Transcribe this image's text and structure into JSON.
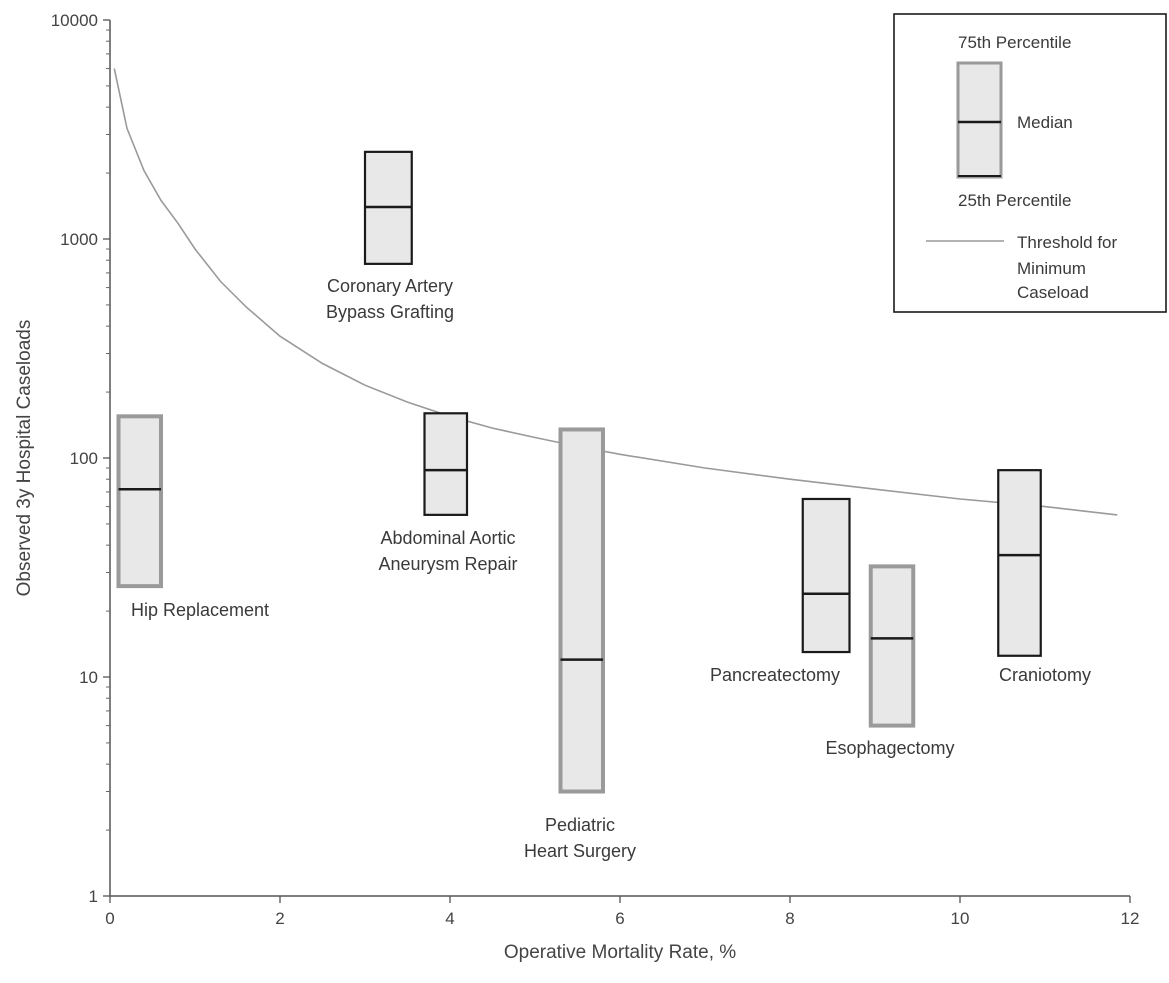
{
  "chart_data": {
    "type": "box",
    "title": "",
    "xlabel": "Operative Mortality Rate, %",
    "ylabel": "Observed 3y Hospital Caseloads",
    "xlim": [
      0,
      12
    ],
    "ylim": [
      1,
      10000
    ],
    "yscale": "log",
    "x_ticks": [
      "0",
      "2",
      "4",
      "6",
      "8",
      "10",
      "12"
    ],
    "y_ticks": [
      "1",
      "10",
      "100",
      "1000",
      "10000"
    ],
    "grid": false,
    "legend_position": "top-right",
    "colors": {
      "box_fill": "#e8e8e8",
      "box_edge_dark": "#1a1a1a",
      "box_edge_gray": "#9a9a9a",
      "threshold": "#9a9a9a"
    },
    "boxes": [
      {
        "name": "Hip Replacement",
        "label_lines": [
          "Hip Replacement"
        ],
        "x_low": 0.1,
        "x_high": 0.6,
        "q1": 26,
        "median": 72,
        "q3": 155,
        "edge": "gray"
      },
      {
        "name": "Coronary Artery Bypass Grafting",
        "label_lines": [
          "Coronary Artery",
          "Bypass Grafting"
        ],
        "x_low": 3.0,
        "x_high": 3.55,
        "q1": 770,
        "median": 1400,
        "q3": 2500,
        "edge": "dark"
      },
      {
        "name": "Abdominal Aortic Aneurysm Repair",
        "label_lines": [
          "Abdominal Aortic",
          "Aneurysm Repair"
        ],
        "x_low": 3.7,
        "x_high": 4.2,
        "q1": 55,
        "median": 88,
        "q3": 160,
        "edge": "dark"
      },
      {
        "name": "Pediatric Heart Surgery",
        "label_lines": [
          "Pediatric",
          "Heart Surgery"
        ],
        "x_low": 5.3,
        "x_high": 5.8,
        "q1": 3,
        "median": 12,
        "q3": 135,
        "edge": "gray"
      },
      {
        "name": "Pancreatectomy",
        "label_lines": [
          "Pancreatectomy"
        ],
        "x_low": 8.15,
        "x_high": 8.7,
        "q1": 13,
        "median": 24,
        "q3": 65,
        "edge": "dark"
      },
      {
        "name": "Esophagectomy",
        "label_lines": [
          "Esophagectomy"
        ],
        "x_low": 8.95,
        "x_high": 9.45,
        "q1": 6,
        "median": 15,
        "q3": 32,
        "edge": "gray"
      },
      {
        "name": "Craniotomy",
        "label_lines": [
          "Craniotomy"
        ],
        "x_low": 10.45,
        "x_high": 10.95,
        "q1": 12.5,
        "median": 36,
        "q3": 88,
        "edge": "dark"
      }
    ],
    "threshold_curve": {
      "name": "Threshold for Minimum Caseload",
      "x": [
        0.05,
        0.2,
        0.4,
        0.6,
        0.8,
        1.0,
        1.3,
        1.6,
        2.0,
        2.5,
        3.0,
        3.5,
        4.0,
        4.5,
        5.0,
        5.5,
        6.0,
        7.0,
        8.0,
        9.0,
        10.0,
        11.0,
        11.85
      ],
      "y": [
        6000,
        3200,
        2050,
        1500,
        1180,
        900,
        640,
        490,
        360,
        270,
        215,
        180,
        155,
        137,
        124,
        113,
        104,
        90,
        80,
        72,
        65,
        60,
        55
      ]
    },
    "legend": {
      "q3_label": "75th Percentile",
      "median_label": "Median",
      "q1_label": "25th Percentile",
      "threshold_lines": [
        "Threshold for",
        "Minimum",
        "Caseload"
      ]
    }
  }
}
